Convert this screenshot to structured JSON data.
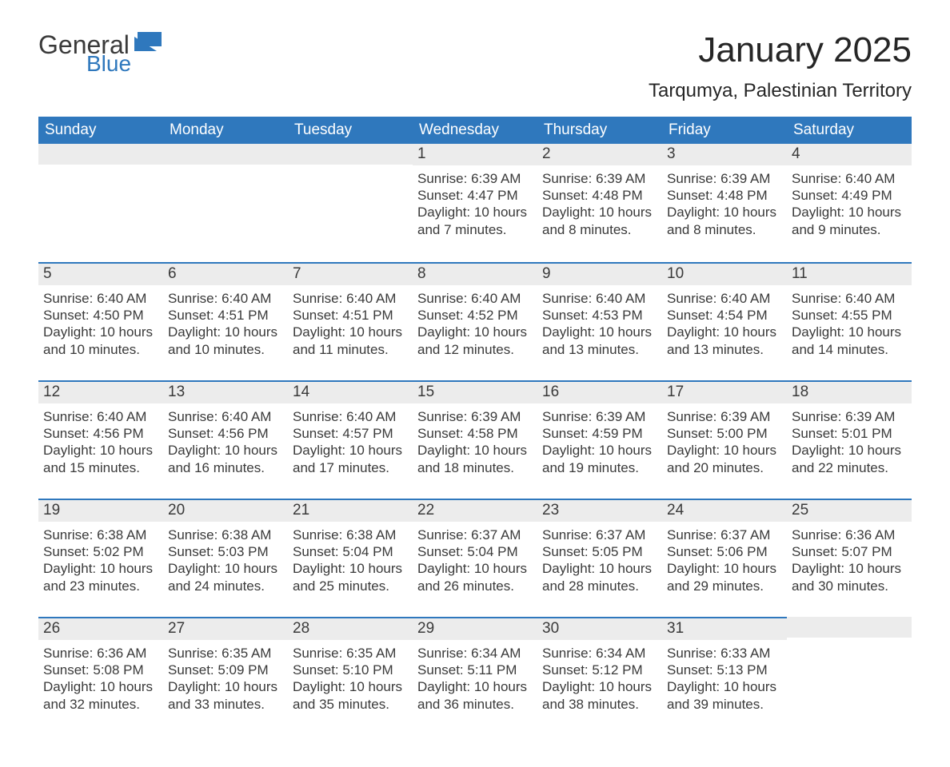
{
  "logo": {
    "word1": "General",
    "word2": "Blue",
    "flag_color": "#2f78bd"
  },
  "title": "January 2025",
  "subtitle": "Tarqumya, Palestinian Territory",
  "colors": {
    "header_bg": "#2f78bd",
    "header_text": "#ffffff",
    "day_header_bg": "#ececec",
    "rule": "#2f78bd",
    "body_text": "#3a3a3a"
  },
  "weekdays": [
    "Sunday",
    "Monday",
    "Tuesday",
    "Wednesday",
    "Thursday",
    "Friday",
    "Saturday"
  ],
  "weeks": [
    [
      null,
      null,
      null,
      {
        "n": "1",
        "sunrise": "Sunrise: 6:39 AM",
        "sunset": "Sunset: 4:47 PM",
        "daylight": "Daylight: 10 hours and 7 minutes."
      },
      {
        "n": "2",
        "sunrise": "Sunrise: 6:39 AM",
        "sunset": "Sunset: 4:48 PM",
        "daylight": "Daylight: 10 hours and 8 minutes."
      },
      {
        "n": "3",
        "sunrise": "Sunrise: 6:39 AM",
        "sunset": "Sunset: 4:48 PM",
        "daylight": "Daylight: 10 hours and 8 minutes."
      },
      {
        "n": "4",
        "sunrise": "Sunrise: 6:40 AM",
        "sunset": "Sunset: 4:49 PM",
        "daylight": "Daylight: 10 hours and 9 minutes."
      }
    ],
    [
      {
        "n": "5",
        "sunrise": "Sunrise: 6:40 AM",
        "sunset": "Sunset: 4:50 PM",
        "daylight": "Daylight: 10 hours and 10 minutes."
      },
      {
        "n": "6",
        "sunrise": "Sunrise: 6:40 AM",
        "sunset": "Sunset: 4:51 PM",
        "daylight": "Daylight: 10 hours and 10 minutes."
      },
      {
        "n": "7",
        "sunrise": "Sunrise: 6:40 AM",
        "sunset": "Sunset: 4:51 PM",
        "daylight": "Daylight: 10 hours and 11 minutes."
      },
      {
        "n": "8",
        "sunrise": "Sunrise: 6:40 AM",
        "sunset": "Sunset: 4:52 PM",
        "daylight": "Daylight: 10 hours and 12 minutes."
      },
      {
        "n": "9",
        "sunrise": "Sunrise: 6:40 AM",
        "sunset": "Sunset: 4:53 PM",
        "daylight": "Daylight: 10 hours and 13 minutes."
      },
      {
        "n": "10",
        "sunrise": "Sunrise: 6:40 AM",
        "sunset": "Sunset: 4:54 PM",
        "daylight": "Daylight: 10 hours and 13 minutes."
      },
      {
        "n": "11",
        "sunrise": "Sunrise: 6:40 AM",
        "sunset": "Sunset: 4:55 PM",
        "daylight": "Daylight: 10 hours and 14 minutes."
      }
    ],
    [
      {
        "n": "12",
        "sunrise": "Sunrise: 6:40 AM",
        "sunset": "Sunset: 4:56 PM",
        "daylight": "Daylight: 10 hours and 15 minutes."
      },
      {
        "n": "13",
        "sunrise": "Sunrise: 6:40 AM",
        "sunset": "Sunset: 4:56 PM",
        "daylight": "Daylight: 10 hours and 16 minutes."
      },
      {
        "n": "14",
        "sunrise": "Sunrise: 6:40 AM",
        "sunset": "Sunset: 4:57 PM",
        "daylight": "Daylight: 10 hours and 17 minutes."
      },
      {
        "n": "15",
        "sunrise": "Sunrise: 6:39 AM",
        "sunset": "Sunset: 4:58 PM",
        "daylight": "Daylight: 10 hours and 18 minutes."
      },
      {
        "n": "16",
        "sunrise": "Sunrise: 6:39 AM",
        "sunset": "Sunset: 4:59 PM",
        "daylight": "Daylight: 10 hours and 19 minutes."
      },
      {
        "n": "17",
        "sunrise": "Sunrise: 6:39 AM",
        "sunset": "Sunset: 5:00 PM",
        "daylight": "Daylight: 10 hours and 20 minutes."
      },
      {
        "n": "18",
        "sunrise": "Sunrise: 6:39 AM",
        "sunset": "Sunset: 5:01 PM",
        "daylight": "Daylight: 10 hours and 22 minutes."
      }
    ],
    [
      {
        "n": "19",
        "sunrise": "Sunrise: 6:38 AM",
        "sunset": "Sunset: 5:02 PM",
        "daylight": "Daylight: 10 hours and 23 minutes."
      },
      {
        "n": "20",
        "sunrise": "Sunrise: 6:38 AM",
        "sunset": "Sunset: 5:03 PM",
        "daylight": "Daylight: 10 hours and 24 minutes."
      },
      {
        "n": "21",
        "sunrise": "Sunrise: 6:38 AM",
        "sunset": "Sunset: 5:04 PM",
        "daylight": "Daylight: 10 hours and 25 minutes."
      },
      {
        "n": "22",
        "sunrise": "Sunrise: 6:37 AM",
        "sunset": "Sunset: 5:04 PM",
        "daylight": "Daylight: 10 hours and 26 minutes."
      },
      {
        "n": "23",
        "sunrise": "Sunrise: 6:37 AM",
        "sunset": "Sunset: 5:05 PM",
        "daylight": "Daylight: 10 hours and 28 minutes."
      },
      {
        "n": "24",
        "sunrise": "Sunrise: 6:37 AM",
        "sunset": "Sunset: 5:06 PM",
        "daylight": "Daylight: 10 hours and 29 minutes."
      },
      {
        "n": "25",
        "sunrise": "Sunrise: 6:36 AM",
        "sunset": "Sunset: 5:07 PM",
        "daylight": "Daylight: 10 hours and 30 minutes."
      }
    ],
    [
      {
        "n": "26",
        "sunrise": "Sunrise: 6:36 AM",
        "sunset": "Sunset: 5:08 PM",
        "daylight": "Daylight: 10 hours and 32 minutes."
      },
      {
        "n": "27",
        "sunrise": "Sunrise: 6:35 AM",
        "sunset": "Sunset: 5:09 PM",
        "daylight": "Daylight: 10 hours and 33 minutes."
      },
      {
        "n": "28",
        "sunrise": "Sunrise: 6:35 AM",
        "sunset": "Sunset: 5:10 PM",
        "daylight": "Daylight: 10 hours and 35 minutes."
      },
      {
        "n": "29",
        "sunrise": "Sunrise: 6:34 AM",
        "sunset": "Sunset: 5:11 PM",
        "daylight": "Daylight: 10 hours and 36 minutes."
      },
      {
        "n": "30",
        "sunrise": "Sunrise: 6:34 AM",
        "sunset": "Sunset: 5:12 PM",
        "daylight": "Daylight: 10 hours and 38 minutes."
      },
      {
        "n": "31",
        "sunrise": "Sunrise: 6:33 AM",
        "sunset": "Sunset: 5:13 PM",
        "daylight": "Daylight: 10 hours and 39 minutes."
      },
      null
    ]
  ]
}
